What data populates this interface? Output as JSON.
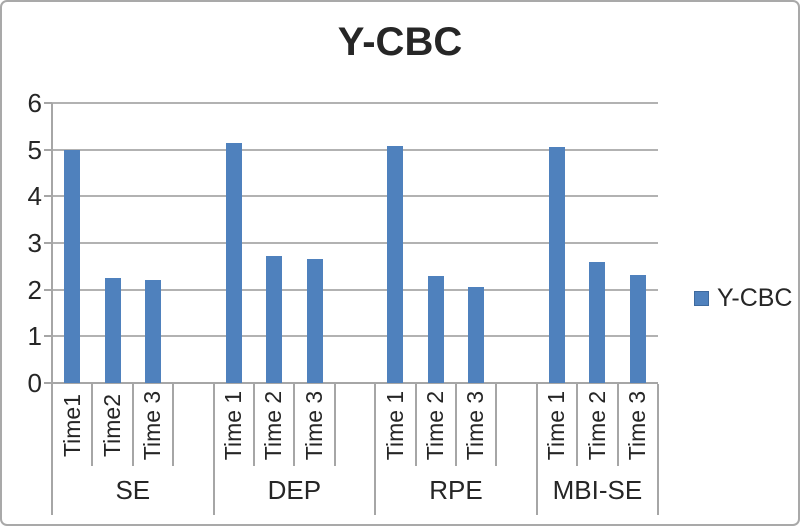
{
  "window": {
    "background": "#FFFFFF",
    "border_color": "#A9A9A9"
  },
  "chart_data": {
    "type": "bar",
    "title": "Y-CBC",
    "xlabel": "",
    "ylabel": "",
    "ylim": [
      0,
      6
    ],
    "yticks": [
      "0",
      "1",
      "2",
      "3",
      "4",
      "5",
      "6"
    ],
    "grid": true,
    "legend": {
      "label": "Y-CBC",
      "position": "right-middle"
    },
    "colors": {
      "bar": "#4F81BD",
      "axis": "#A6A6A6",
      "gridline": "#B2B2B2",
      "text": "#262626"
    },
    "groups": [
      {
        "label": "SE",
        "categories": [
          "Time1",
          "Time2",
          "Time 3",
          ""
        ],
        "values": [
          5.0,
          2.25,
          2.2,
          null
        ]
      },
      {
        "label": "DEP",
        "categories": [
          "Time 1",
          "Time 2",
          "Time 3",
          ""
        ],
        "values": [
          5.15,
          2.73,
          2.65,
          null
        ]
      },
      {
        "label": "RPE",
        "categories": [
          "Time 1",
          "Time 2",
          "Time 3",
          ""
        ],
        "values": [
          5.07,
          2.3,
          2.05,
          null
        ]
      },
      {
        "label": "MBI-SE",
        "categories": [
          "Time 1",
          "Time 2",
          "Time 3"
        ],
        "values": [
          5.05,
          2.6,
          2.32
        ]
      }
    ]
  }
}
